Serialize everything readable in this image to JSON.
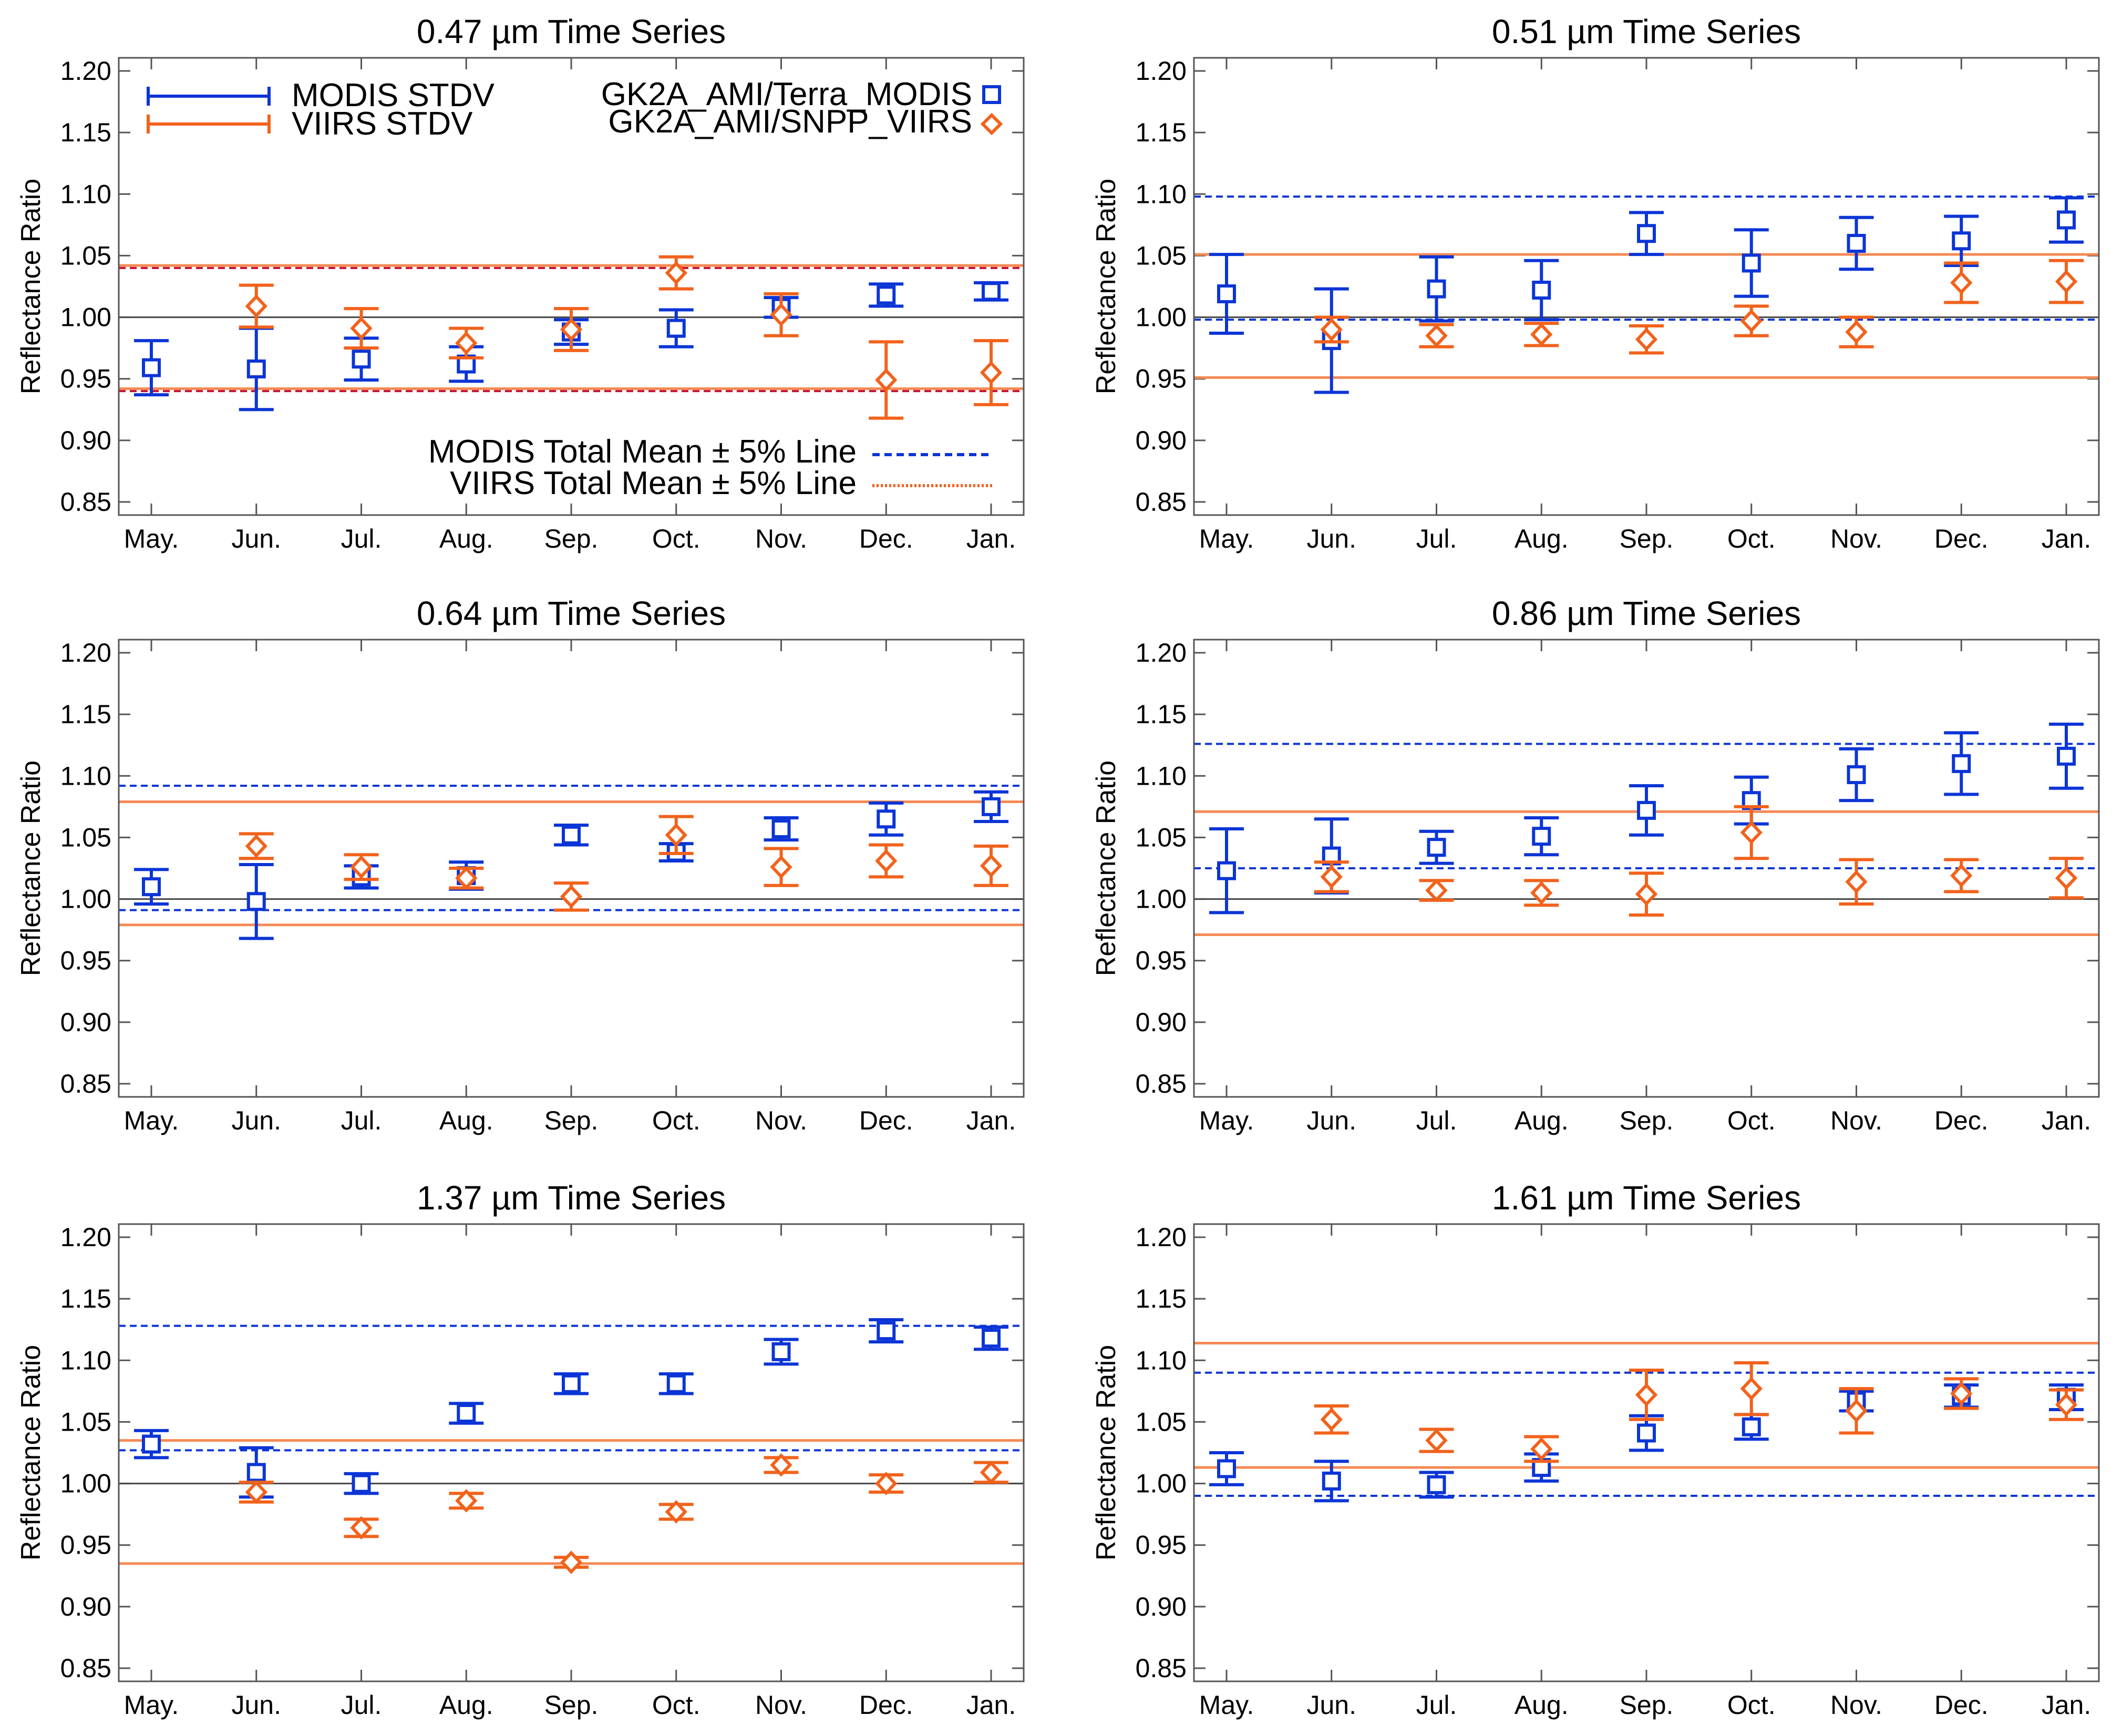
{
  "colors": {
    "modis": "#0b35d6",
    "viirs": "#f2621b",
    "grid": "#555555",
    "unity": "#444444",
    "red_dashed": "#c8102e"
  },
  "legend": {
    "modis_stdv": "MODIS STDV",
    "viirs_stdv": "VIIRS STDV",
    "modis_series": "GK2A_AMI/Terra_MODIS",
    "viirs_series": "GK2A_AMI/SNPP_VIIRS",
    "modis_mean_line": "MODIS Total Mean ± 5% Line",
    "viirs_mean_line": "VIIRS Total Mean ± 5% Line"
  },
  "chart_data": [
    {
      "type": "scatter",
      "title": "0.47 µm Time Series",
      "ylabel": "Reflectance Ratio",
      "ylim": [
        0.85,
        1.2
      ],
      "yticks": [
        "0.85",
        "0.90",
        "0.95",
        "1.00",
        "1.05",
        "1.10",
        "1.15",
        "1.20"
      ],
      "categories": [
        "May.",
        "Jun.",
        "Jul.",
        "Aug.",
        "Sep.",
        "Oct.",
        "Nov.",
        "Dec.",
        "Jan."
      ],
      "reference_line": 1.0,
      "series": [
        {
          "name": "GK2A_AMI/Terra_MODIS",
          "marker": "square",
          "values": [
            0.959,
            0.958,
            0.966,
            0.962,
            0.988,
            0.991,
            1.008,
            1.018,
            1.021
          ],
          "stdv": [
            0.022,
            0.033,
            0.017,
            0.014,
            0.01,
            0.015,
            0.008,
            0.009,
            0.007
          ],
          "mean_band": [
            0.94,
            1.04
          ]
        },
        {
          "name": "GK2A_AMI/SNPP_VIIRS",
          "marker": "diamond",
          "values": [
            null,
            1.009,
            0.991,
            0.979,
            0.99,
            1.036,
            1.002,
            0.949,
            0.955
          ],
          "stdv": [
            null,
            0.017,
            0.016,
            0.012,
            0.017,
            0.013,
            0.017,
            0.031,
            0.026
          ],
          "mean_band": [
            0.942,
            1.042
          ]
        }
      ]
    },
    {
      "type": "scatter",
      "title": "0.51 µm Time Series",
      "ylabel": "Reflectance Ratio",
      "ylim": [
        0.85,
        1.2
      ],
      "yticks": [
        "0.85",
        "0.90",
        "0.95",
        "1.00",
        "1.05",
        "1.10",
        "1.15",
        "1.20"
      ],
      "categories": [
        "May.",
        "Jun.",
        "Jul.",
        "Aug.",
        "Sep.",
        "Oct.",
        "Nov.",
        "Dec.",
        "Jan."
      ],
      "reference_line": 1.0,
      "series": [
        {
          "name": "GK2A_AMI/Terra_MODIS",
          "marker": "square",
          "values": [
            1.019,
            0.981,
            1.023,
            1.022,
            1.068,
            1.044,
            1.06,
            1.062,
            1.079
          ],
          "stdv": [
            0.032,
            0.042,
            0.026,
            0.024,
            0.017,
            0.027,
            0.021,
            0.02,
            0.018
          ],
          "mean_band": [
            0.998,
            1.098
          ]
        },
        {
          "name": "GK2A_AMI/SNPP_VIIRS",
          "marker": "diamond",
          "values": [
            null,
            0.99,
            0.985,
            0.986,
            0.982,
            0.997,
            0.988,
            1.028,
            1.029
          ],
          "stdv": [
            null,
            0.01,
            0.009,
            0.009,
            0.011,
            0.012,
            0.012,
            0.016,
            0.017
          ],
          "mean_band": [
            0.951,
            1.051
          ]
        }
      ]
    },
    {
      "type": "scatter",
      "title": "0.64 µm Time Series",
      "ylabel": "Reflectance Ratio",
      "ylim": [
        0.85,
        1.2
      ],
      "yticks": [
        "0.85",
        "0.90",
        "0.95",
        "1.00",
        "1.05",
        "1.10",
        "1.15",
        "1.20"
      ],
      "categories": [
        "May.",
        "Jun.",
        "Jul.",
        "Aug.",
        "Sep.",
        "Oct.",
        "Nov.",
        "Dec.",
        "Jan."
      ],
      "reference_line": 1.0,
      "series": [
        {
          "name": "GK2A_AMI/Terra_MODIS",
          "marker": "square",
          "values": [
            1.01,
            0.998,
            1.018,
            1.019,
            1.052,
            1.038,
            1.057,
            1.065,
            1.075
          ],
          "stdv": [
            0.014,
            0.03,
            0.009,
            0.011,
            0.008,
            0.007,
            0.009,
            0.013,
            0.012
          ],
          "mean_band": [
            0.991,
            1.092
          ]
        },
        {
          "name": "GK2A_AMI/SNPP_VIIRS",
          "marker": "diamond",
          "values": [
            null,
            1.043,
            1.026,
            1.017,
            1.002,
            1.052,
            1.026,
            1.031,
            1.027
          ],
          "stdv": [
            null,
            0.01,
            0.01,
            0.008,
            0.011,
            0.015,
            0.015,
            0.013,
            0.016
          ],
          "mean_band": [
            0.979,
            1.079
          ]
        }
      ]
    },
    {
      "type": "scatter",
      "title": "0.86 µm Time Series",
      "ylabel": "Reflectance Ratio",
      "ylim": [
        0.85,
        1.2
      ],
      "yticks": [
        "0.85",
        "0.90",
        "0.95",
        "1.00",
        "1.05",
        "1.10",
        "1.15",
        "1.20"
      ],
      "categories": [
        "May.",
        "Jun.",
        "Jul.",
        "Aug.",
        "Sep.",
        "Oct.",
        "Nov.",
        "Dec.",
        "Jan."
      ],
      "reference_line": 1.0,
      "series": [
        {
          "name": "GK2A_AMI/Terra_MODIS",
          "marker": "square",
          "values": [
            1.023,
            1.035,
            1.042,
            1.051,
            1.072,
            1.08,
            1.101,
            1.11,
            1.116
          ],
          "stdv": [
            0.034,
            0.03,
            0.013,
            0.015,
            0.02,
            0.019,
            0.021,
            0.025,
            0.026
          ],
          "mean_band": [
            1.025,
            1.126
          ]
        },
        {
          "name": "GK2A_AMI/SNPP_VIIRS",
          "marker": "diamond",
          "values": [
            null,
            1.018,
            1.007,
            1.005,
            1.004,
            1.054,
            1.014,
            1.019,
            1.017
          ],
          "stdv": [
            null,
            0.012,
            0.008,
            0.01,
            0.017,
            0.021,
            0.018,
            0.013,
            0.016
          ],
          "mean_band": [
            0.971,
            1.071
          ]
        }
      ]
    },
    {
      "type": "scatter",
      "title": "1.37 µm Time Series",
      "ylabel": "Reflectance Ratio",
      "ylim": [
        0.85,
        1.2
      ],
      "yticks": [
        "0.85",
        "0.90",
        "0.95",
        "1.00",
        "1.05",
        "1.10",
        "1.15",
        "1.20"
      ],
      "categories": [
        "May.",
        "Jun.",
        "Jul.",
        "Aug.",
        "Sep.",
        "Oct.",
        "Nov.",
        "Dec.",
        "Jan."
      ],
      "reference_line": 1.0,
      "series": [
        {
          "name": "GK2A_AMI/Terra_MODIS",
          "marker": "square",
          "values": [
            1.032,
            1.009,
            1.0,
            1.057,
            1.081,
            1.081,
            1.107,
            1.124,
            1.118
          ],
          "stdv": [
            0.011,
            0.02,
            0.008,
            0.008,
            0.008,
            0.008,
            0.01,
            0.009,
            0.009
          ],
          "mean_band": [
            1.027,
            1.128
          ]
        },
        {
          "name": "GK2A_AMI/SNPP_VIIRS",
          "marker": "diamond",
          "values": [
            null,
            0.993,
            0.964,
            0.986,
            0.936,
            0.977,
            1.015,
            1.0,
            1.009
          ],
          "stdv": [
            null,
            0.008,
            0.007,
            0.006,
            0.004,
            0.006,
            0.006,
            0.007,
            0.008
          ],
          "mean_band": [
            0.935,
            1.035
          ]
        }
      ]
    },
    {
      "type": "scatter",
      "title": "1.61 µm Time Series",
      "ylabel": "Reflectance Ratio",
      "ylim": [
        0.85,
        1.2
      ],
      "yticks": [
        "0.85",
        "0.90",
        "0.95",
        "1.00",
        "1.05",
        "1.10",
        "1.15",
        "1.20"
      ],
      "categories": [
        "May.",
        "Jun.",
        "Jul.",
        "Aug.",
        "Sep.",
        "Oct.",
        "Nov.",
        "Dec.",
        "Jan."
      ],
      "reference_line": null,
      "series": [
        {
          "name": "GK2A_AMI/Terra_MODIS",
          "marker": "square",
          "values": [
            1.012,
            1.002,
            0.999,
            1.013,
            1.041,
            1.046,
            1.067,
            1.071,
            1.07
          ],
          "stdv": [
            0.013,
            0.016,
            0.01,
            0.011,
            0.014,
            0.01,
            0.008,
            0.009,
            0.01
          ],
          "mean_band": [
            0.99,
            1.09
          ]
        },
        {
          "name": "GK2A_AMI/SNPP_VIIRS",
          "marker": "diamond",
          "values": [
            null,
            1.052,
            1.035,
            1.028,
            1.072,
            1.077,
            1.059,
            1.073,
            1.064
          ],
          "stdv": [
            null,
            0.011,
            0.009,
            0.01,
            0.02,
            0.021,
            0.018,
            0.012,
            0.012
          ],
          "mean_band": [
            1.013,
            1.114
          ]
        }
      ]
    }
  ]
}
